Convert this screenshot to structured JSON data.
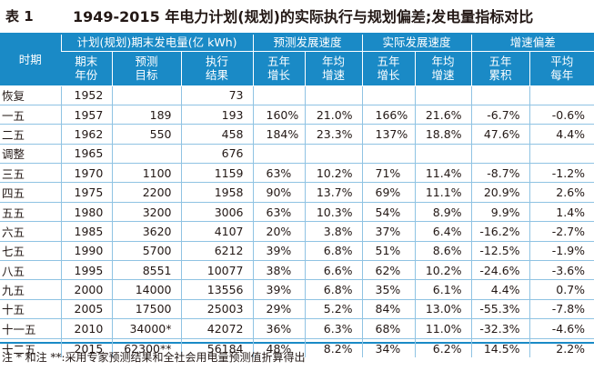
{
  "table_no": "表 1",
  "title": "1949-2015 年电力计划(规划)的实际执行与规划偏差;发电量指标对比",
  "headers": {
    "period": "时期",
    "plan_group": "计划(规划)期末发电量(亿 kWh)",
    "forecast_group": "预测发展速度",
    "actual_group": "实际发展速度",
    "deviation_group": "增速偏差",
    "sub": [
      [
        "期末",
        "年份"
      ],
      [
        "预测",
        "目标"
      ],
      [
        "执行",
        "结果"
      ],
      [
        "五年",
        "增长"
      ],
      [
        "年均",
        "增速"
      ],
      [
        "五年",
        "增长"
      ],
      [
        "年均",
        "增速"
      ],
      [
        "五年",
        "累积"
      ],
      [
        "平均",
        "每年"
      ]
    ]
  },
  "rows": [
    [
      "恢复",
      "1952",
      "",
      "73",
      "",
      "",
      "",
      "",
      "",
      ""
    ],
    [
      "一五",
      "1957",
      "189",
      "193",
      "160%",
      "21.0%",
      "166%",
      "21.6%",
      "-6.7%",
      "-0.6%"
    ],
    [
      "二五",
      "1962",
      "550",
      "458",
      "184%",
      "23.3%",
      "137%",
      "18.8%",
      "47.6%",
      "4.4%"
    ],
    [
      "调整",
      "1965",
      "",
      "676",
      "",
      "",
      "",
      "",
      "",
      ""
    ],
    [
      "三五",
      "1970",
      "1100",
      "1159",
      "63%",
      "10.2%",
      "71%",
      "11.4%",
      "-8.7%",
      "-1.2%"
    ],
    [
      "四五",
      "1975",
      "2200",
      "1958",
      "90%",
      "13.7%",
      "69%",
      "11.1%",
      "20.9%",
      "2.6%"
    ],
    [
      "五五",
      "1980",
      "3200",
      "3006",
      "63%",
      "10.3%",
      "54%",
      "8.9%",
      "9.9%",
      "1.4%"
    ],
    [
      "六五",
      "1985",
      "3620",
      "4107",
      "20%",
      "3.8%",
      "37%",
      "6.4%",
      "-16.2%",
      "-2.7%"
    ],
    [
      "七五",
      "1990",
      "5700",
      "6212",
      "39%",
      "6.8%",
      "51%",
      "8.6%",
      "-12.5%",
      "-1.9%"
    ],
    [
      "八五",
      "1995",
      "8551",
      "10077",
      "38%",
      "6.6%",
      "62%",
      "10.2%",
      "-24.6%",
      "-3.6%"
    ],
    [
      "九五",
      "2000",
      "14000",
      "13556",
      "39%",
      "6.8%",
      "35%",
      "6.1%",
      "4.4%",
      "0.7%"
    ],
    [
      "十五",
      "2005",
      "17500",
      "25003",
      "29%",
      "5.2%",
      "84%",
      "13.0%",
      "-55.3%",
      "-7.8%"
    ],
    [
      "十一五",
      "2010",
      "34000*",
      "42072",
      "36%",
      "6.3%",
      "68%",
      "11.0%",
      "-32.3%",
      "-4.6%"
    ],
    [
      "十二五",
      "2015",
      "62300**",
      "56184",
      "48%",
      "8.2%",
      "34%",
      "6.2%",
      "14.5%",
      "2.2%"
    ]
  ],
  "note": "注 * 和注 **:采用专家预测结果和全社会用电量预测值折算得出",
  "colors": {
    "header_bg": "#1a8ac6",
    "grid": "#8fc3e3",
    "text": "#231815"
  }
}
